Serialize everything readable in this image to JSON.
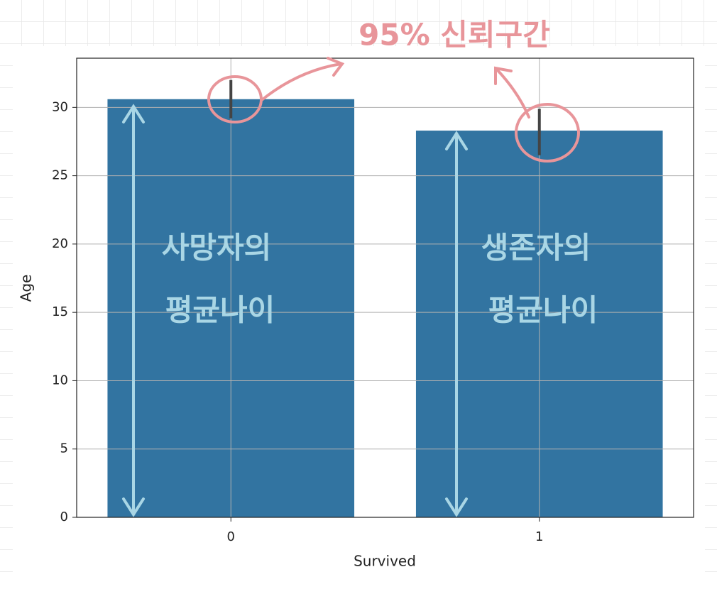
{
  "chart_data": {
    "type": "bar",
    "x_label": "Survived",
    "y_label": "Age",
    "categories": [
      "0",
      "1"
    ],
    "values": [
      30.6,
      28.3
    ],
    "ci": [
      [
        29.2,
        32.0
      ],
      [
        26.5,
        29.9
      ]
    ],
    "color": "#3274a1",
    "error_color": "#444444",
    "xlim": [
      -0.5,
      1.5
    ],
    "ylim": [
      0,
      33.6
    ],
    "yticks": [
      0,
      5,
      10,
      15,
      20,
      25,
      30
    ],
    "grid": true,
    "annotations": [
      "95% 신뢰구간",
      "사망자의",
      "평균나이",
      "생존자의",
      "평균나이"
    ]
  }
}
